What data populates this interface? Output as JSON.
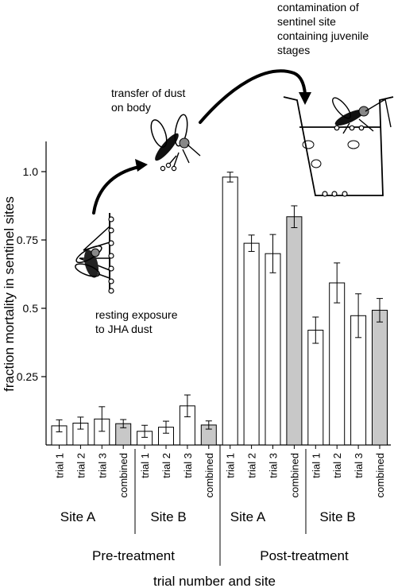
{
  "chart_data": {
    "type": "bar",
    "title": "",
    "ylabel": "fraction mortality in sentinel sites",
    "xlabel": "trial number and site",
    "ylim": [
      0,
      1.05
    ],
    "yticks": [
      0.25,
      0.5,
      0.75,
      1.0
    ],
    "ytick_labels": [
      "0.25",
      "0.5",
      "0.75",
      "1.0"
    ],
    "categories": [
      "trial 1",
      "trial 2",
      "trial 3",
      "combined",
      "trial 1",
      "trial 2",
      "trial 3",
      "combined",
      "trial 1",
      "trial 2",
      "trial 3",
      "combined",
      "trial 1",
      "trial 2",
      "trial 3",
      "combined"
    ],
    "values": [
      0.07,
      0.08,
      0.095,
      0.078,
      0.05,
      0.065,
      0.143,
      0.073,
      0.98,
      0.738,
      0.7,
      0.835,
      0.42,
      0.593,
      0.473,
      0.493
    ],
    "errors": [
      0.022,
      0.022,
      0.045,
      0.015,
      0.022,
      0.022,
      0.04,
      0.015,
      0.018,
      0.03,
      0.07,
      0.04,
      0.048,
      0.073,
      0.08,
      0.043
    ],
    "combined_color": "#c8c8c8",
    "trial_color": "#ffffff",
    "sites": [
      "Site A",
      "Site B",
      "Site A",
      "Site B"
    ],
    "phases": [
      "Pre-treatment",
      "Post-treatment"
    ],
    "annotations": {
      "resting": [
        "resting exposure",
        "to JHA dust"
      ],
      "transfer": [
        "transfer of dust",
        "on body"
      ],
      "contamination": [
        "contamination of",
        "sentinel site",
        "containing juvenile",
        "stages"
      ]
    }
  }
}
